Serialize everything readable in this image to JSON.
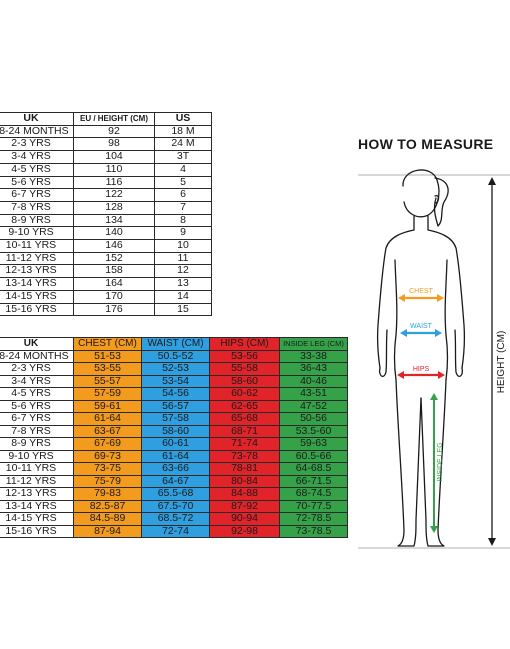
{
  "size_table": {
    "headers": [
      "UK",
      "EU / HEIGHT (CM)",
      "US"
    ],
    "rows": [
      [
        "18-24 MONTHS",
        "92",
        "18 M"
      ],
      [
        "2-3 YRS",
        "98",
        "24 M"
      ],
      [
        "3-4 YRS",
        "104",
        "3T"
      ],
      [
        "4-5 YRS",
        "110",
        "4"
      ],
      [
        "5-6 YRS",
        "116",
        "5"
      ],
      [
        "6-7 YRS",
        "122",
        "6"
      ],
      [
        "7-8 YRS",
        "128",
        "7"
      ],
      [
        "8-9 YRS",
        "134",
        "8"
      ],
      [
        "9-10 YRS",
        "140",
        "9"
      ],
      [
        "10-11 YRS",
        "146",
        "10"
      ],
      [
        "11-12 YRS",
        "152",
        "11"
      ],
      [
        "12-13 YRS",
        "158",
        "12"
      ],
      [
        "13-14 YRS",
        "164",
        "13"
      ],
      [
        "14-15 YRS",
        "170",
        "14"
      ],
      [
        "15-16 YRS",
        "176",
        "15"
      ]
    ]
  },
  "measure_table": {
    "headers": [
      "UK",
      "CHEST (CM)",
      "WAIST (CM)",
      "HIPS (CM)",
      "INSIDE LEG (CM)"
    ],
    "rows": [
      [
        "18-24 MONTHS",
        "51-53",
        "50.5-52",
        "53-56",
        "33-38"
      ],
      [
        "2-3 YRS",
        "53-55",
        "52-53",
        "55-58",
        "36-43"
      ],
      [
        "3-4 YRS",
        "55-57",
        "53-54",
        "58-60",
        "40-46"
      ],
      [
        "4-5 YRS",
        "57-59",
        "54-56",
        "60-62",
        "43-51"
      ],
      [
        "5-6 YRS",
        "59-61",
        "56-57",
        "62-65",
        "47-52"
      ],
      [
        "6-7 YRS",
        "61-64",
        "57-58",
        "65-68",
        "50-56"
      ],
      [
        "7-8 YRS",
        "63-67",
        "58-60",
        "68-71",
        "53.5-60"
      ],
      [
        "8-9 YRS",
        "67-69",
        "60-61",
        "71-74",
        "59-63"
      ],
      [
        "9-10 YRS",
        "69-73",
        "61-64",
        "73-78",
        "60.5-66"
      ],
      [
        "10-11 YRS",
        "73-75",
        "63-66",
        "78-81",
        "64-68.5"
      ],
      [
        "11-12 YRS",
        "75-79",
        "64-67",
        "80-84",
        "66-71.5"
      ],
      [
        "12-13 YRS",
        "79-83",
        "65.5-68",
        "84-88",
        "68-74.5"
      ],
      [
        "13-14 YRS",
        "82.5-87",
        "67.5-70",
        "87-92",
        "70-77.5"
      ],
      [
        "14-15 YRS",
        "84.5-89",
        "68.5-72",
        "90-94",
        "72-78.5"
      ],
      [
        "15-16 YRS",
        "87-94",
        "72-74",
        "92-98",
        "73-78.5"
      ]
    ]
  },
  "how_to_measure": {
    "title": "HOW TO MEASURE",
    "chest_label": "CHEST",
    "waist_label": "WAIST",
    "hips_label": "HIPS",
    "inside_leg_label": "INSIDE LEG",
    "height_label": "HEIGHT (CM)"
  },
  "colors": {
    "chest": "#f39b1f",
    "waist": "#2f9fe0",
    "hips": "#e0242a",
    "inside_leg": "#35a24a",
    "outline": "#1a1a1a"
  }
}
